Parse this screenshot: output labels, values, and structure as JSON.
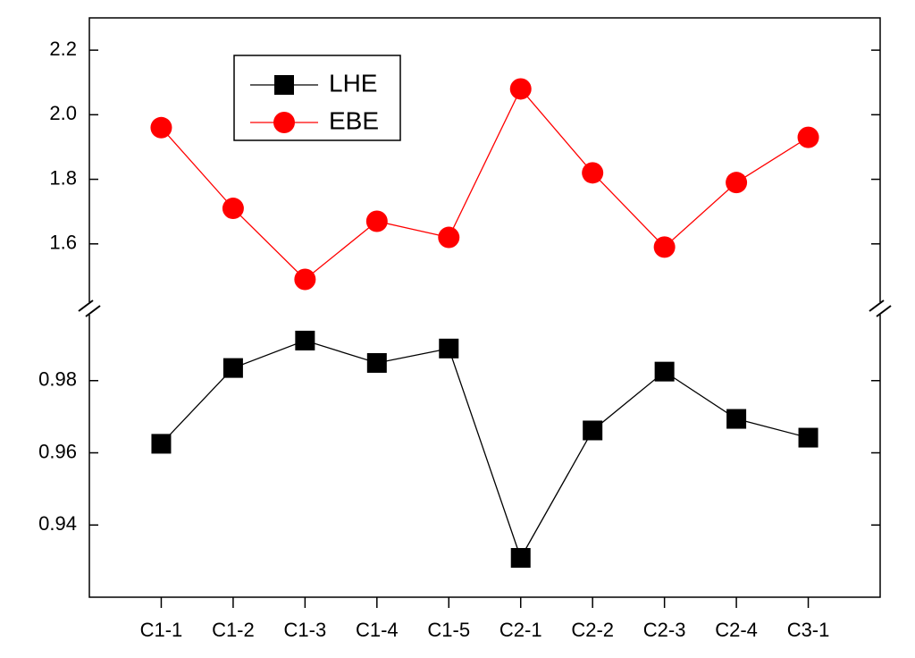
{
  "chart_data": {
    "type": "line",
    "categories": [
      "C1-1",
      "C1-2",
      "C1-3",
      "C1-4",
      "C1-5",
      "C2-1",
      "C2-2",
      "C2-3",
      "C2-4",
      "C3-1"
    ],
    "series": [
      {
        "name": "LHE",
        "color": "#000000",
        "marker": "square",
        "values": [
          0.9625,
          0.9835,
          0.9911,
          0.9849,
          0.9889,
          0.9309,
          0.9662,
          0.9825,
          0.9694,
          0.9642
        ]
      },
      {
        "name": "EBE",
        "color": "#ff0000",
        "marker": "circle",
        "axis": "y2",
        "values": [
          1.96,
          1.71,
          1.49,
          1.67,
          1.62,
          2.08,
          1.82,
          1.59,
          1.79,
          1.93
        ]
      }
    ],
    "ylim": [
      0.92,
      1.0
    ],
    "yticks": [
      0.94,
      0.96,
      0.98
    ],
    "y2lim": [
      1.4,
      2.3
    ],
    "y2ticks": [
      1.6,
      1.8,
      {
        "value": 2,
        "label": "2.0"
      },
      2.2
    ],
    "legend": "upper-left"
  }
}
